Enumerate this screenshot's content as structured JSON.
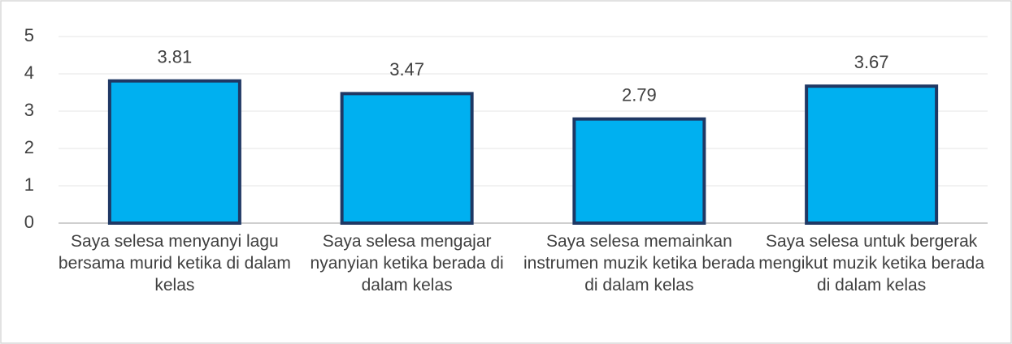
{
  "chart_data": {
    "type": "bar",
    "categories": [
      "Saya selesa menyanyi lagu bersama murid ketika di dalam kelas",
      "Saya selesa mengajar nyanyian ketika berada di dalam kelas",
      "Saya selesa memainkan instrumen muzik ketika berada di dalam kelas",
      "Saya selesa untuk bergerak mengikut muzik ketika berada di dalam kelas"
    ],
    "values": [
      3.81,
      3.47,
      2.79,
      3.67
    ],
    "color": "#00b0f0",
    "edge_color": "#1f3864",
    "ylim": [
      0,
      5
    ],
    "yticks": [
      0,
      1,
      2,
      3,
      4,
      5
    ],
    "grid": true
  }
}
